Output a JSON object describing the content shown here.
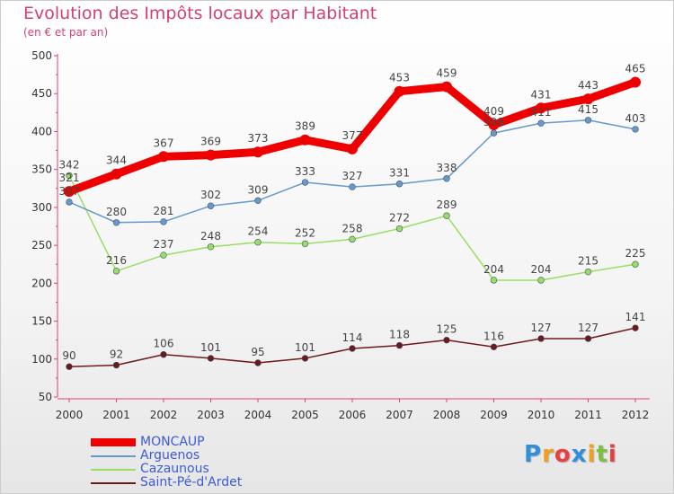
{
  "chart_data": {
    "type": "line",
    "title": "Evolution des Impôts locaux par Habitant",
    "subtitle": "(en € et par an)",
    "x": [
      "2000",
      "2001",
      "2002",
      "2003",
      "2004",
      "2005",
      "2006",
      "2007",
      "2008",
      "2009",
      "2010",
      "2011",
      "2012"
    ],
    "ylim": [
      50,
      500
    ],
    "yticks": [
      50,
      100,
      150,
      200,
      250,
      300,
      350,
      400,
      450,
      500
    ],
    "grid": false,
    "legend_position": "bottom-left",
    "series": [
      {
        "name": "Saint-Pé-d'Ardet",
        "color": "#6b1a1a",
        "values": [
          90,
          92,
          106,
          101,
          95,
          101,
          114,
          118,
          125,
          116,
          127,
          127,
          141
        ]
      },
      {
        "name": "Cazaunous",
        "color": "#99dd66",
        "values": [
          342,
          216,
          237,
          248,
          254,
          252,
          258,
          272,
          289,
          204,
          204,
          215,
          225
        ]
      },
      {
        "name": "Arguenos",
        "color": "#6699cc",
        "values": [
          307,
          280,
          281,
          302,
          309,
          333,
          327,
          331,
          338,
          398,
          411,
          415,
          403
        ]
      },
      {
        "name": "MONCAUP",
        "color": "#ee0000",
        "values": [
          321,
          344,
          367,
          369,
          373,
          389,
          377,
          453,
          459,
          409,
          431,
          443,
          465
        ]
      }
    ],
    "legend_order": [
      "MONCAUP",
      "Arguenos",
      "Cazaunous",
      "Saint-Pé-d'Ardet"
    ]
  },
  "logo": {
    "letters": [
      "P",
      "r",
      "o",
      "x",
      "i",
      "t",
      "i"
    ],
    "colors": [
      "#2f8fd8",
      "#f0a020",
      "#e84040",
      "#2f8fd8",
      "#f0a020",
      "#7cc040",
      "#e84040"
    ]
  }
}
